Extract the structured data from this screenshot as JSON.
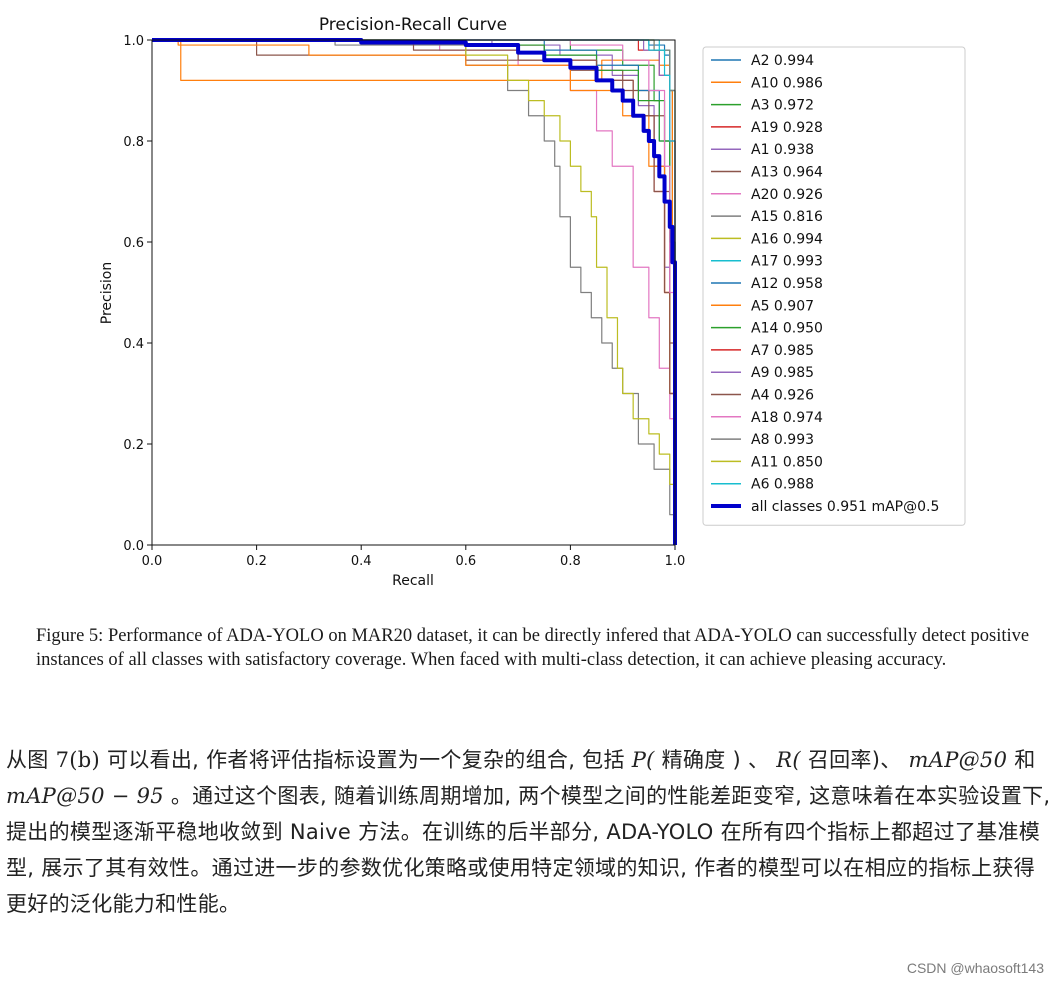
{
  "chart_data": {
    "type": "line",
    "title": "Precision-Recall Curve",
    "xlabel": "Recall",
    "ylabel": "Precision",
    "xlim": [
      0.0,
      1.0
    ],
    "ylim": [
      0.0,
      1.0
    ],
    "xticks": [
      "0.0",
      "0.2",
      "0.4",
      "0.6",
      "0.8",
      "1.0"
    ],
    "yticks": [
      "0.0",
      "0.2",
      "0.4",
      "0.6",
      "0.8",
      "1.0"
    ],
    "grid": false,
    "legend_position": "right",
    "series": [
      {
        "name": "A2 0.994",
        "color": "#1f77b4",
        "x": [
          0,
          0.9,
          0.95,
          0.98,
          0.99,
          0.995,
          1.0
        ],
        "y": [
          1.0,
          1.0,
          0.99,
          0.97,
          0.9,
          0.6,
          0.0
        ]
      },
      {
        "name": "A10 0.986",
        "color": "#ff7f0e",
        "x": [
          0,
          0.05,
          0.055,
          0.85,
          0.86,
          0.97,
          0.99,
          0.995,
          1.0
        ],
        "y": [
          1.0,
          1.0,
          0.92,
          0.92,
          0.96,
          0.95,
          0.9,
          0.6,
          0.0
        ]
      },
      {
        "name": "A3 0.972",
        "color": "#2ca02c",
        "x": [
          0,
          0.7,
          0.8,
          0.9,
          0.96,
          0.98,
          0.99,
          1.0
        ],
        "y": [
          1.0,
          1.0,
          0.98,
          0.95,
          0.88,
          0.8,
          0.6,
          0.0
        ]
      },
      {
        "name": "A19 0.928",
        "color": "#d62728",
        "x": [
          0,
          0.6,
          0.75,
          0.85,
          0.92,
          0.96,
          0.98,
          0.99,
          1.0
        ],
        "y": [
          1.0,
          0.99,
          0.96,
          0.92,
          0.85,
          0.7,
          0.5,
          0.3,
          0.0
        ]
      },
      {
        "name": "A1 0.938",
        "color": "#9467bd",
        "x": [
          0,
          0.65,
          0.78,
          0.88,
          0.93,
          0.96,
          0.98,
          0.99,
          1.0
        ],
        "y": [
          1.0,
          0.99,
          0.97,
          0.93,
          0.87,
          0.75,
          0.55,
          0.3,
          0.0
        ]
      },
      {
        "name": "A13 0.964",
        "color": "#8c564b",
        "x": [
          0,
          0.2,
          0.6,
          0.8,
          0.9,
          0.95,
          0.98,
          0.99,
          1.0
        ],
        "y": [
          1.0,
          0.97,
          0.96,
          0.94,
          0.9,
          0.85,
          0.7,
          0.4,
          0.0
        ]
      },
      {
        "name": "A20 0.926",
        "color": "#e377c2",
        "x": [
          0,
          0.55,
          0.7,
          0.8,
          0.85,
          0.88,
          0.92,
          0.95,
          0.97,
          0.99,
          1.0
        ],
        "y": [
          1.0,
          0.98,
          0.95,
          0.9,
          0.82,
          0.75,
          0.55,
          0.45,
          0.35,
          0.25,
          0.0
        ]
      },
      {
        "name": "A15 0.816",
        "color": "#7f7f7f",
        "x": [
          0,
          0.35,
          0.6,
          0.68,
          0.72,
          0.75,
          0.77,
          0.78,
          0.8,
          0.82,
          0.84,
          0.86,
          0.88,
          0.9,
          0.93,
          0.96,
          0.99,
          1.0
        ],
        "y": [
          1.0,
          0.99,
          0.95,
          0.9,
          0.85,
          0.8,
          0.75,
          0.65,
          0.55,
          0.5,
          0.45,
          0.4,
          0.35,
          0.3,
          0.2,
          0.15,
          0.06,
          0.0
        ]
      },
      {
        "name": "A16 0.994",
        "color": "#bcbd22",
        "x": [
          0,
          0.9,
          0.96,
          0.99,
          1.0
        ],
        "y": [
          1.0,
          1.0,
          0.98,
          0.9,
          0.0
        ]
      },
      {
        "name": "A17 0.993",
        "color": "#17becf",
        "x": [
          0,
          0.92,
          0.97,
          0.99,
          1.0
        ],
        "y": [
          1.0,
          1.0,
          0.98,
          0.9,
          0.0
        ]
      },
      {
        "name": "A12 0.958",
        "color": "#1f77b4",
        "x": [
          0,
          0.6,
          0.75,
          0.85,
          0.93,
          0.97,
          0.99,
          1.0
        ],
        "y": [
          1.0,
          1.0,
          0.98,
          0.95,
          0.9,
          0.8,
          0.6,
          0.0
        ]
      },
      {
        "name": "A5 0.907",
        "color": "#ff7f0e",
        "x": [
          0,
          0.05,
          0.3,
          0.6,
          0.8,
          0.9,
          0.95,
          0.98,
          0.99,
          1.0
        ],
        "y": [
          1.0,
          0.99,
          0.97,
          0.95,
          0.9,
          0.85,
          0.75,
          0.5,
          0.3,
          0.0
        ]
      },
      {
        "name": "A14 0.950",
        "color": "#2ca02c",
        "x": [
          0,
          0.6,
          0.75,
          0.85,
          0.93,
          0.97,
          0.99,
          1.0
        ],
        "y": [
          1.0,
          0.99,
          0.97,
          0.94,
          0.88,
          0.8,
          0.6,
          0.0
        ]
      },
      {
        "name": "A7 0.985",
        "color": "#d62728",
        "x": [
          0,
          0.85,
          0.93,
          0.97,
          0.99,
          1.0
        ],
        "y": [
          1.0,
          1.0,
          0.98,
          0.93,
          0.8,
          0.0
        ]
      },
      {
        "name": "A9 0.985",
        "color": "#9467bd",
        "x": [
          0,
          0.87,
          0.94,
          0.97,
          0.99,
          1.0
        ],
        "y": [
          1.0,
          1.0,
          0.98,
          0.93,
          0.8,
          0.0
        ]
      },
      {
        "name": "A4 0.926",
        "color": "#8c564b",
        "x": [
          0,
          0.5,
          0.7,
          0.85,
          0.92,
          0.96,
          0.98,
          0.99,
          1.0
        ],
        "y": [
          1.0,
          0.98,
          0.96,
          0.92,
          0.85,
          0.7,
          0.5,
          0.3,
          0.0
        ]
      },
      {
        "name": "A18 0.974",
        "color": "#e377c2",
        "x": [
          0,
          0.8,
          0.9,
          0.95,
          0.98,
          0.99,
          1.0
        ],
        "y": [
          1.0,
          0.99,
          0.96,
          0.9,
          0.75,
          0.5,
          0.0
        ]
      },
      {
        "name": "A8 0.993",
        "color": "#7f7f7f",
        "x": [
          0,
          0.9,
          0.96,
          0.99,
          1.0
        ],
        "y": [
          1.0,
          1.0,
          0.98,
          0.9,
          0.0
        ]
      },
      {
        "name": "A11 0.850",
        "color": "#bcbd22",
        "x": [
          0,
          0.6,
          0.68,
          0.72,
          0.75,
          0.78,
          0.8,
          0.82,
          0.84,
          0.85,
          0.87,
          0.89,
          0.9,
          0.92,
          0.95,
          0.97,
          0.99,
          1.0
        ],
        "y": [
          1.0,
          0.97,
          0.92,
          0.88,
          0.85,
          0.8,
          0.75,
          0.7,
          0.65,
          0.55,
          0.45,
          0.35,
          0.3,
          0.25,
          0.22,
          0.18,
          0.12,
          0.0
        ]
      },
      {
        "name": "A6 0.988",
        "color": "#17becf",
        "x": [
          0,
          0.88,
          0.95,
          0.98,
          0.99,
          1.0
        ],
        "y": [
          1.0,
          1.0,
          0.98,
          0.93,
          0.8,
          0.0
        ]
      },
      {
        "name": "all classes 0.951 mAP@0.5",
        "color": "#0000cc",
        "bold": true,
        "x": [
          0,
          0.4,
          0.6,
          0.7,
          0.75,
          0.8,
          0.85,
          0.88,
          0.9,
          0.92,
          0.94,
          0.95,
          0.96,
          0.97,
          0.98,
          0.99,
          0.995,
          1.0,
          1.0
        ],
        "y": [
          1.0,
          0.995,
          0.99,
          0.975,
          0.96,
          0.945,
          0.92,
          0.9,
          0.88,
          0.85,
          0.82,
          0.8,
          0.77,
          0.73,
          0.68,
          0.63,
          0.56,
          0.5,
          0.0
        ]
      }
    ]
  },
  "caption": "Figure 5: Performance of ADA-YOLO on MAR20 dataset, it can be directly infered that ADA-YOLO can successfully detect positive instances of all classes with satisfactory coverage. When faced with multi-class detection, it can achieve pleasing accuracy.",
  "article": {
    "t1": "从图 ",
    "m1": "7(b)",
    "t2": " 可以看出, 作者将评估指标设置为一个复杂的组合, 包括 ",
    "m2": "P(",
    "t3": " 精确度 ) 、 ",
    "m3": "R(",
    "t4": " 召回率)、 ",
    "m4": "mAP@50",
    "t5": " 和 ",
    "m5": "mAP@50 − 95",
    "t6": " 。通过这个图表, 随着训练周期增加, 两个模型之间的性能差距变窄, 这意味着在本实验设置下, 提出的模型逐渐平稳地收敛到 Naive 方法。在训练的后半部分, ADA-YOLO 在所有四个指标上都超过了基准模型, 展示了其有效性。通过进一步的参数优化策略或使用特定领域的知识, 作者的模型可以在相应的指标上获得更好的泛化能力和性能。"
  },
  "watermark": "CSDN @whaosoft143"
}
